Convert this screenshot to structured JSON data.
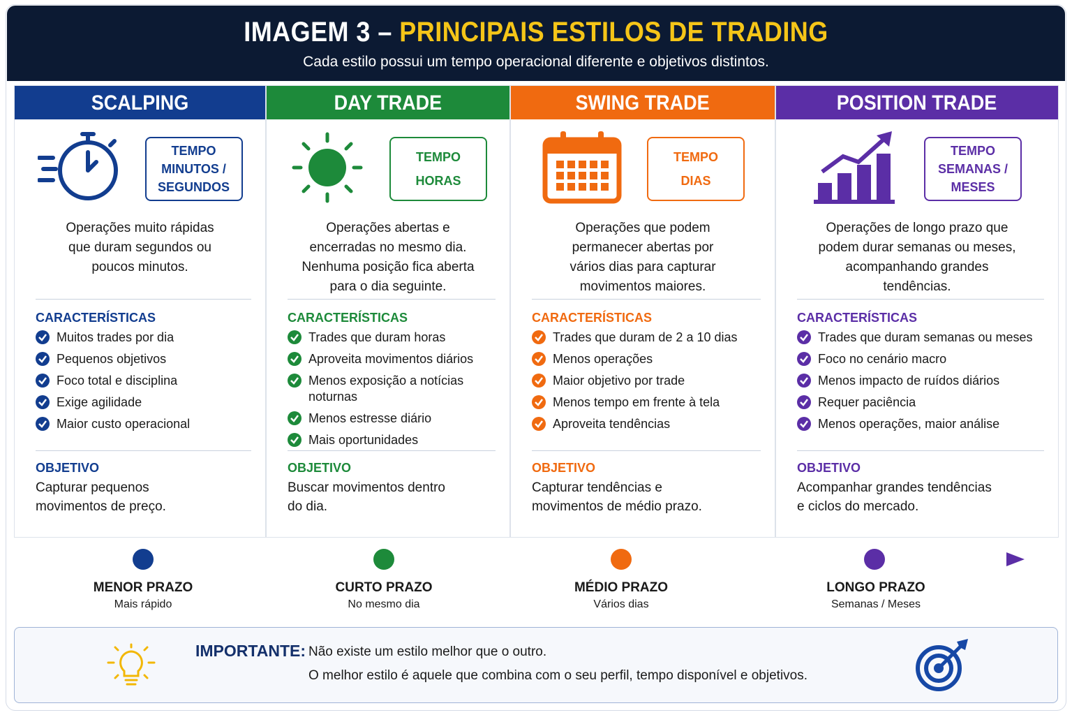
{
  "header": {
    "title_prefix": "IMAGEM 3 –",
    "title_highlight": "PRINCIPAIS ESTILOS DE TRADING",
    "subtitle": "Cada estilo possui um tempo operacional diferente e objetivos distintos."
  },
  "columns": [
    {
      "name": "SCALPING",
      "time_label": "TEMPO",
      "time_lines": [
        "MINUTOS /",
        "SEGUNDOS"
      ],
      "description": [
        "Operações muito rápidas",
        "que duram segundos ou",
        "poucos minutos."
      ],
      "characteristics_heading": "CARACTERÍSTICAS",
      "characteristics": [
        "Muitos trades por dia",
        "Pequenos objetivos",
        "Foco total e disciplina",
        "Exige agilidade",
        "Maior custo operacional"
      ],
      "objective_heading": "OBJETIVO",
      "objective": [
        "Capturar pequenos",
        "movimentos de preço."
      ]
    },
    {
      "name": "DAY TRADE",
      "time_label": "TEMPO",
      "time_lines": [
        "HORAS"
      ],
      "description": [
        "Operações abertas e",
        "encerradas no mesmo dia.",
        "Nenhuma posição fica aberta",
        "para o dia seguinte."
      ],
      "characteristics_heading": "CARACTERÍSTICAS",
      "characteristics": [
        "Trades que duram horas",
        "Aproveita movimentos diários",
        "Menos exposição a notícias noturnas",
        "Menos estresse diário",
        "Mais oportunidades"
      ],
      "objective_heading": "OBJETIVO",
      "objective": [
        "Buscar movimentos dentro",
        "do dia."
      ]
    },
    {
      "name": "SWING TRADE",
      "time_label": "TEMPO",
      "time_lines": [
        "DIAS"
      ],
      "description": [
        "Operações que podem",
        "permanecer abertas por",
        "vários dias para capturar",
        "movimentos maiores."
      ],
      "characteristics_heading": "CARACTERÍSTICAS",
      "characteristics": [
        "Trades que duram de 2 a 10 dias",
        "Menos operações",
        "Maior objetivo por trade",
        "Menos tempo em frente à tela",
        "Aproveita tendências"
      ],
      "objective_heading": "OBJETIVO",
      "objective": [
        "Capturar tendências e",
        "movimentos de médio prazo."
      ]
    },
    {
      "name": "POSITION TRADE",
      "time_label": "TEMPO",
      "time_lines": [
        "SEMANAS /",
        "MESES"
      ],
      "description": [
        "Operações de longo prazo que",
        "podem durar semanas ou meses,",
        "acompanhando grandes",
        "tendências."
      ],
      "characteristics_heading": "CARACTERÍSTICAS",
      "characteristics": [
        "Trades que duram semanas ou meses",
        "Foco no cenário macro",
        "Menos impacto de ruídos diários",
        "Requer paciência",
        "Menos operações, maior análise"
      ],
      "objective_heading": "OBJETIVO",
      "objective": [
        "Acompanhar grandes tendências",
        "e ciclos do mercado."
      ]
    }
  ],
  "timeline": [
    {
      "label": "MENOR PRAZO",
      "sub": "Mais rápido"
    },
    {
      "label": "CURTO PRAZO",
      "sub": "No mesmo dia"
    },
    {
      "label": "MÉDIO PRAZO",
      "sub": "Vários dias"
    },
    {
      "label": "LONGO PRAZO",
      "sub": "Semanas / Meses"
    }
  ],
  "important": {
    "label": "IMPORTANTE:",
    "lines": [
      "Não existe um estilo melhor que o outro.",
      "O melhor estilo é aquele que combina com o seu perfil, tempo disponível e objetivos."
    ]
  }
}
